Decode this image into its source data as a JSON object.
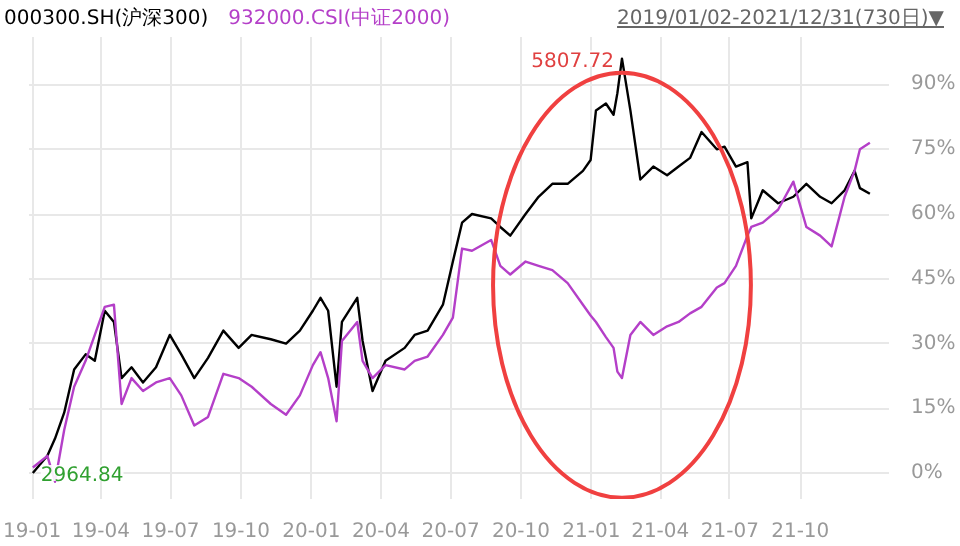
{
  "chart_data": {
    "type": "line",
    "subtitle": "2019/01/02-2021/12/31(730日)▼",
    "x": [
      "2019-01-02",
      "2019-01-21",
      "2019-01-31",
      "2019-02-12",
      "2019-02-25",
      "2019-03-12",
      "2019-03-24",
      "2019-04-06",
      "2019-04-18",
      "2019-04-28",
      "2019-05-11",
      "2019-05-26",
      "2019-06-12",
      "2019-06-30",
      "2019-07-15",
      "2019-08-01",
      "2019-08-19",
      "2019-09-08",
      "2019-09-28",
      "2019-10-15",
      "2019-11-09",
      "2019-11-29",
      "2019-12-17",
      "2020-01-03",
      "2020-01-13",
      "2020-01-23",
      "2020-02-03",
      "2020-02-10",
      "2020-03-01",
      "2020-03-08",
      "2020-03-21",
      "2020-04-07",
      "2020-05-02",
      "2020-05-15",
      "2020-06-01",
      "2020-06-21",
      "2020-07-04",
      "2020-07-16",
      "2020-07-29",
      "2020-08-23",
      "2020-09-04",
      "2020-09-17",
      "2020-10-07",
      "2020-10-24",
      "2020-11-11",
      "2020-12-01",
      "2020-12-21",
      "2020-12-31",
      "2021-01-07",
      "2021-01-20",
      "2021-01-30",
      "2021-02-04",
      "2021-02-10",
      "2021-02-21",
      "2021-03-06",
      "2021-03-23",
      "2021-04-10",
      "2021-04-25",
      "2021-05-10",
      "2021-05-25",
      "2021-06-14",
      "2021-06-24",
      "2021-07-09",
      "2021-07-24",
      "2021-07-29",
      "2021-08-13",
      "2021-09-02",
      "2021-09-22",
      "2021-10-09",
      "2021-10-27",
      "2021-11-11",
      "2021-11-28",
      "2021-12-11",
      "2021-12-18",
      "2021-12-31"
    ],
    "series": [
      {
        "name": "000300.SH(沪深300)",
        "color": "#000000",
        "values": [
          0,
          4,
          8,
          14,
          24,
          27.5,
          26,
          37.6,
          35,
          22,
          24.5,
          21,
          24.5,
          32,
          27.5,
          22,
          26.7,
          33,
          29,
          32,
          31,
          30,
          33,
          37.6,
          40.6,
          37.6,
          20,
          35,
          40.6,
          30.6,
          19,
          26,
          29,
          32,
          33,
          39,
          49,
          58,
          60,
          59,
          57,
          55,
          60,
          64,
          67,
          67,
          70,
          72.5,
          84,
          85.6,
          83,
          88,
          96,
          84,
          68,
          71,
          69,
          71,
          73,
          79,
          75,
          75.6,
          71,
          72,
          59,
          65.5,
          62.5,
          64,
          67,
          64,
          62.5,
          65.5,
          70,
          66,
          64.7
        ]
      },
      {
        "name": "932000.CSI(中证2000)",
        "color": "#b43fc8",
        "values": [
          1.3,
          4,
          -2,
          10,
          20,
          26,
          32,
          38.5,
          39,
          16,
          22,
          19,
          21,
          22,
          18,
          11,
          13,
          23,
          22,
          20,
          16,
          13.5,
          18,
          25,
          28,
          22,
          12,
          30.6,
          35,
          26,
          22,
          25,
          24,
          26,
          27,
          32,
          36,
          52,
          51.5,
          54,
          48,
          46,
          49,
          48,
          47,
          44,
          39,
          36.5,
          35,
          31.5,
          29,
          23.5,
          22,
          32,
          35,
          32,
          34,
          35,
          37,
          38.5,
          43,
          44,
          48,
          55,
          57,
          58,
          61,
          67.5,
          57,
          55,
          52.5,
          64,
          70,
          75,
          76.5
        ]
      }
    ],
    "annotations": [
      {
        "text": "5807.72",
        "x": "2021-02-10",
        "y": 96
      },
      {
        "text": "2964.84",
        "x": "2019-01-02",
        "y": 0
      }
    ],
    "xlim": [
      "2018-12-28",
      "2022-01-25"
    ],
    "xticks": [
      {
        "value": "2019-01-01",
        "label": "19-01"
      },
      {
        "value": "2019-04-01",
        "label": "19-04"
      },
      {
        "value": "2019-07-01",
        "label": "19-07"
      },
      {
        "value": "2019-10-01",
        "label": "19-10"
      },
      {
        "value": "2020-01-01",
        "label": "20-01"
      },
      {
        "value": "2020-04-01",
        "label": "20-04"
      },
      {
        "value": "2020-07-01",
        "label": "20-07"
      },
      {
        "value": "2020-10-01",
        "label": "20-10"
      },
      {
        "value": "2021-01-01",
        "label": "21-01"
      },
      {
        "value": "2021-04-01",
        "label": "21-04"
      },
      {
        "value": "2021-07-01",
        "label": "21-07"
      },
      {
        "value": "2021-10-01",
        "label": "21-10"
      }
    ],
    "ylim": [
      -6,
      101
    ],
    "yticks": [
      {
        "value": 0,
        "label": "0%"
      },
      {
        "value": 15,
        "label": "15%"
      },
      {
        "value": 30,
        "label": "30%"
      },
      {
        "value": 45,
        "label": "45%"
      },
      {
        "value": 60,
        "label": "60%"
      },
      {
        "value": 75,
        "label": "75%"
      },
      {
        "value": 90,
        "label": "90%"
      }
    ],
    "grid": true
  }
}
